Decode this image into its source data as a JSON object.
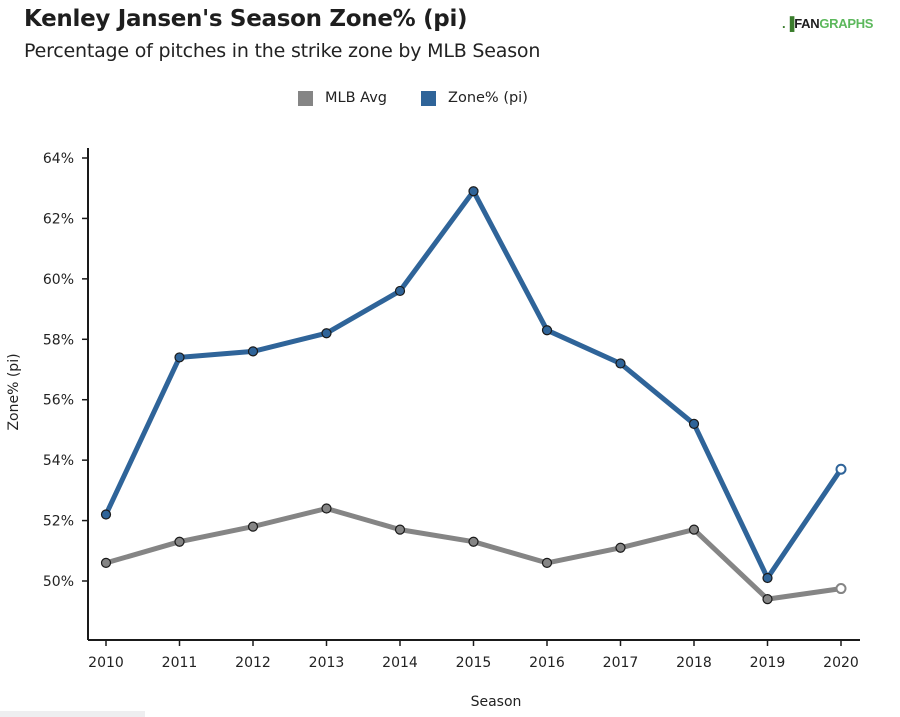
{
  "header": {
    "title": "Kenley Jansen's Season Zone% (pi)",
    "subtitle": "Percentage of pitches in the strike zone by MLB Season",
    "logo_mark": ".▐",
    "logo_fan": "FAN",
    "logo_graphs": "GRAPHS"
  },
  "colors": {
    "zone": "#2f6499",
    "mlb": "#858585",
    "axis": "#1a1a1a"
  },
  "chart_data": {
    "type": "line",
    "title": "Kenley Jansen's Season Zone% (pi)",
    "subtitle": "Percentage of pitches in the strike zone by MLB Season",
    "xlabel": "Season",
    "ylabel": "Zone% (pi)",
    "x": [
      2010,
      2011,
      2012,
      2013,
      2014,
      2015,
      2016,
      2017,
      2018,
      2019,
      2020
    ],
    "x_tick_labels": [
      "2010",
      "2011",
      "2012",
      "2013",
      "2014",
      "2015",
      "2016",
      "2017",
      "2018",
      "2019",
      "2020"
    ],
    "ylim": [
      48,
      64.3
    ],
    "y_ticks": [
      50,
      52,
      54,
      56,
      58,
      60,
      62,
      64
    ],
    "y_tick_labels": [
      "50%",
      "52%",
      "54%",
      "56%",
      "58%",
      "60%",
      "62%",
      "64%"
    ],
    "grid": false,
    "legend_position": "top-center",
    "series": [
      {
        "name": "MLB Avg",
        "color": "#858585",
        "values": [
          50.6,
          51.3,
          51.8,
          52.4,
          51.7,
          51.3,
          50.6,
          51.1,
          51.7,
          49.4,
          49.75
        ],
        "last_point_hollow": true
      },
      {
        "name": "Zone% (pi)",
        "color": "#2f6499",
        "values": [
          52.2,
          57.4,
          57.6,
          58.2,
          59.6,
          62.9,
          58.3,
          57.2,
          55.2,
          50.1,
          53.7
        ],
        "last_point_hollow": true
      }
    ]
  }
}
